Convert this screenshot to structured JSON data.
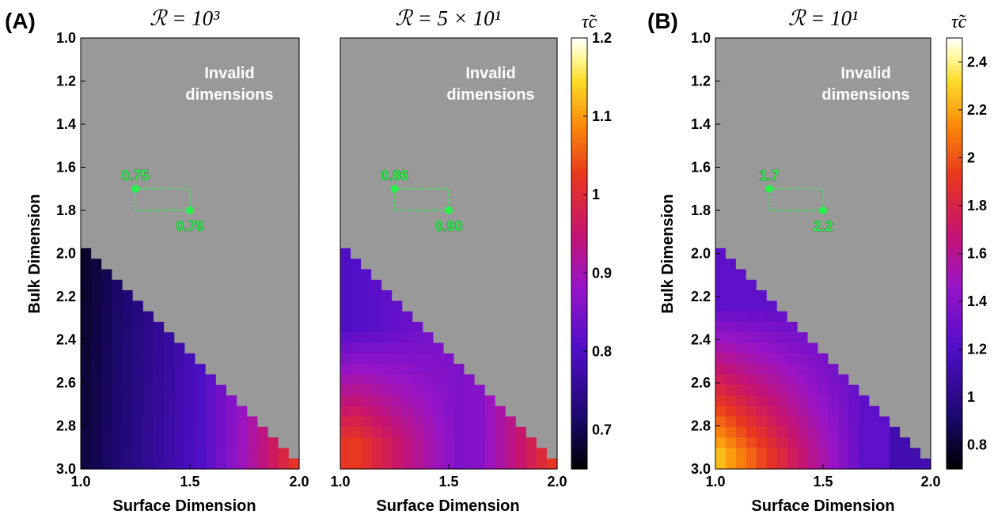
{
  "panel_labels": {
    "a": "(A)",
    "b": "(B)"
  },
  "colorbar_title": "τ̃c",
  "invalid_text": [
    "Invalid",
    "dimensions"
  ],
  "colors": {
    "invalid": "#999999",
    "annotation": "#2bf24a"
  },
  "colormap": "gnuplot (black-blue-purple-red-orange-yellow-white)",
  "chart_data": [
    {
      "type": "heatmap",
      "title": "ℛ = 10³",
      "xlabel": "Surface Dimension",
      "ylabel": "Bulk Dimension",
      "xlim": [
        1.0,
        2.0
      ],
      "ylim": [
        3.0,
        1.0
      ],
      "y_inverted": true,
      "xticks": [
        "1.0",
        "1.5",
        "2.0"
      ],
      "yticks": [
        "1.0",
        "1.2",
        "1.4",
        "1.6",
        "1.8",
        "2.0",
        "2.2",
        "2.4",
        "2.6",
        "2.8",
        "3.0"
      ],
      "color_range": [
        0.65,
        1.2
      ],
      "invalid_region": "bulk < surface + 1",
      "annotation_points": [
        {
          "x": 1.25,
          "y": 1.7,
          "label": "0.75"
        },
        {
          "x": 1.5,
          "y": 1.8,
          "label": "0.78"
        }
      ]
    },
    {
      "type": "heatmap",
      "title": "ℛ = 5 × 10¹",
      "xlabel": "Surface Dimension",
      "ylabel": "",
      "xlim": [
        1.0,
        2.0
      ],
      "ylim": [
        3.0,
        1.0
      ],
      "y_inverted": true,
      "xticks": [
        "1.0",
        "1.5",
        "2.0"
      ],
      "color_range": [
        0.65,
        1.2
      ],
      "colorbar_ticks": [
        "0.7",
        "0.8",
        "0.9",
        "1",
        "1.1",
        "1.2"
      ],
      "invalid_region": "bulk < surface + 1",
      "annotation_points": [
        {
          "x": 1.25,
          "y": 1.7,
          "label": "0.86"
        },
        {
          "x": 1.5,
          "y": 1.8,
          "label": "0.90"
        }
      ]
    },
    {
      "type": "heatmap",
      "title": "ℛ = 10¹",
      "xlabel": "Surface Dimension",
      "ylabel": "Bulk Dimension",
      "xlim": [
        1.0,
        2.0
      ],
      "ylim": [
        3.0,
        1.0
      ],
      "y_inverted": true,
      "xticks": [
        "1.0",
        "1.5",
        "2.0"
      ],
      "yticks": [
        "1.0",
        "1.2",
        "1.4",
        "1.6",
        "1.8",
        "2.0",
        "2.2",
        "2.4",
        "2.6",
        "2.8",
        "3.0"
      ],
      "color_range": [
        0.7,
        2.5
      ],
      "colorbar_ticks": [
        "0.8",
        "1",
        "1.2",
        "1.4",
        "1.6",
        "1.8",
        "2",
        "2.2",
        "2.4"
      ],
      "invalid_region": "bulk < surface + 1",
      "annotation_points": [
        {
          "x": 1.25,
          "y": 1.7,
          "label": "1.7"
        },
        {
          "x": 1.5,
          "y": 1.8,
          "label": "2.2"
        }
      ]
    }
  ]
}
